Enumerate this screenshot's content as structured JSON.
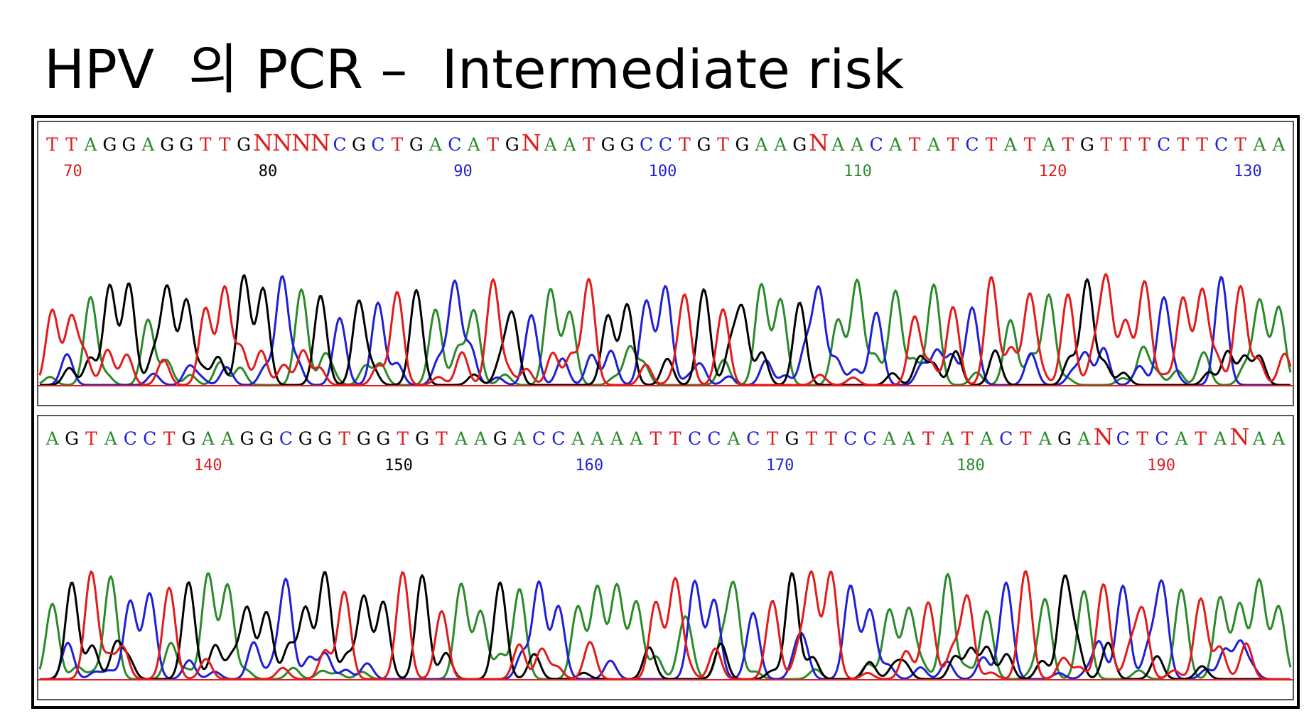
{
  "title": "HPV  의 PCR –  Intermediate risk",
  "colors": {
    "A": "#2a8a2a",
    "C": "#1f1fd6",
    "G": "#000000",
    "T": "#e21b1b",
    "N": "#e21b1b"
  },
  "chart_data": [
    {
      "type": "chromatogram",
      "sequence": "TTAGGAGGTTGNNNNCGCTGACATGNAATGGCCTGTGAAGNAACATATCTATATGTTTCTTCTAA",
      "position_labels": [
        "70",
        "80",
        "90",
        "100",
        "110",
        "120",
        "130"
      ],
      "traces": [
        "A",
        "C",
        "G",
        "T"
      ]
    },
    {
      "type": "chromatogram",
      "sequence": "AGTACCTGAAGGCGGTGGTGTAAGACCAAAATTCCACTGTTCCAATATACTAGANCTCATANAA",
      "position_labels": [
        "140",
        "150",
        "160",
        "170",
        "180",
        "190"
      ],
      "traces": [
        "A",
        "C",
        "G",
        "T"
      ]
    }
  ]
}
